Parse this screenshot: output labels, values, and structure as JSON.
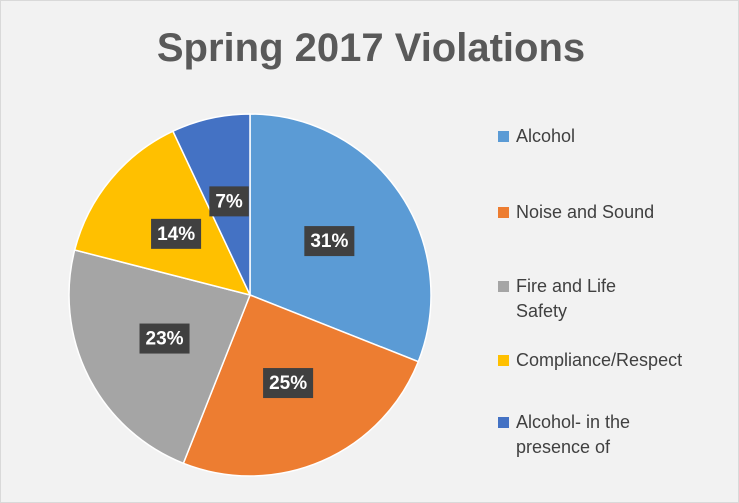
{
  "chart_data": {
    "type": "pie",
    "title": "Spring 2017 Violations",
    "categories": [
      "Alcohol",
      "Noise and Sound",
      "Fire and Life Safety",
      "Compliance/Respect",
      "Alcohol- in the presence of"
    ],
    "values": [
      31,
      25,
      23,
      14,
      7
    ],
    "value_labels": [
      "31%",
      "25%",
      "23%",
      "14%",
      "7%"
    ],
    "colors": [
      "#5b9bd5",
      "#ed7d31",
      "#a5a5a5",
      "#ffc000",
      "#4472c4"
    ],
    "legend": "right"
  }
}
